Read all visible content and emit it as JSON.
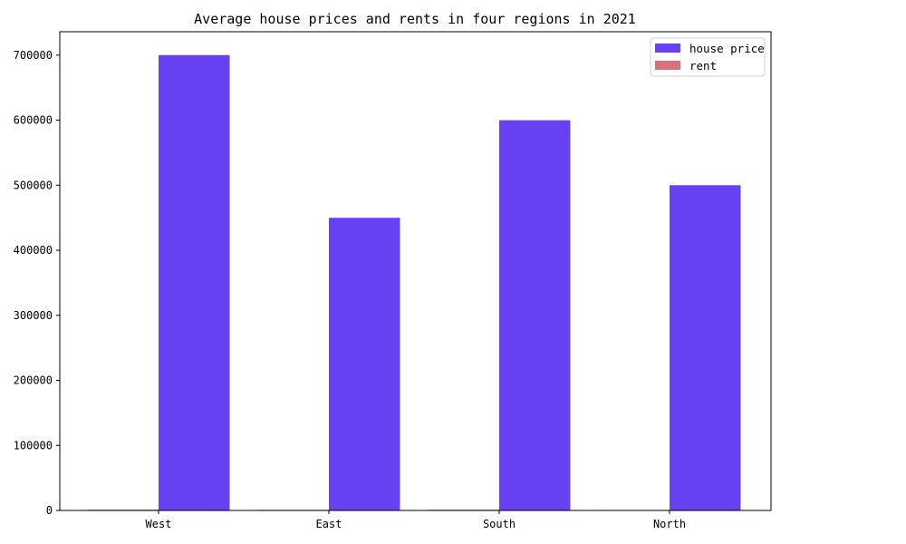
{
  "chart_data": {
    "type": "bar",
    "title": "Average house prices and rents in four regions in 2021",
    "xlabel": "",
    "ylabel": "",
    "categories": [
      "West",
      "East",
      "South",
      "North"
    ],
    "series": [
      {
        "name": "rent",
        "values": [
          1200,
          1000,
          1100,
          900
        ],
        "color": "#d9737b"
      },
      {
        "name": "house price",
        "values": [
          700000,
          450000,
          600000,
          500000
        ],
        "color": "#6841f2"
      }
    ],
    "ylim": [
      0,
      736000
    ],
    "yticks": [
      0,
      100000,
      200000,
      300000,
      400000,
      500000,
      600000,
      700000
    ],
    "yticklabels": [
      "0",
      "100000",
      "200000",
      "300000",
      "400000",
      "500000",
      "600000",
      "700000"
    ],
    "legend": {
      "placement": "top-right",
      "order": [
        "house price",
        "rent"
      ]
    },
    "grid": false
  }
}
